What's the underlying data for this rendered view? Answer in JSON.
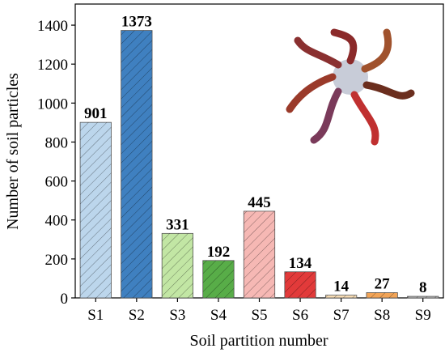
{
  "chart_data": {
    "type": "bar",
    "x_label": "Soil partition number",
    "y_label": "Number of soil particles",
    "categories": [
      "S1",
      "S2",
      "S3",
      "S4",
      "S5",
      "S6",
      "S7",
      "S8",
      "S9"
    ],
    "values": [
      901,
      1373,
      331,
      192,
      445,
      134,
      14,
      27,
      8
    ],
    "colors": [
      "#bcd6ec",
      "#3f80c0",
      "#c2e6a4",
      "#58ad48",
      "#f6b8b4",
      "#e23a3a",
      "#f7dcb4",
      "#f2a457",
      "#bcbcbc"
    ],
    "ylim": [
      0,
      1500
    ],
    "yticks": [
      0,
      200,
      400,
      600,
      800,
      1000,
      1200,
      1400
    ]
  }
}
